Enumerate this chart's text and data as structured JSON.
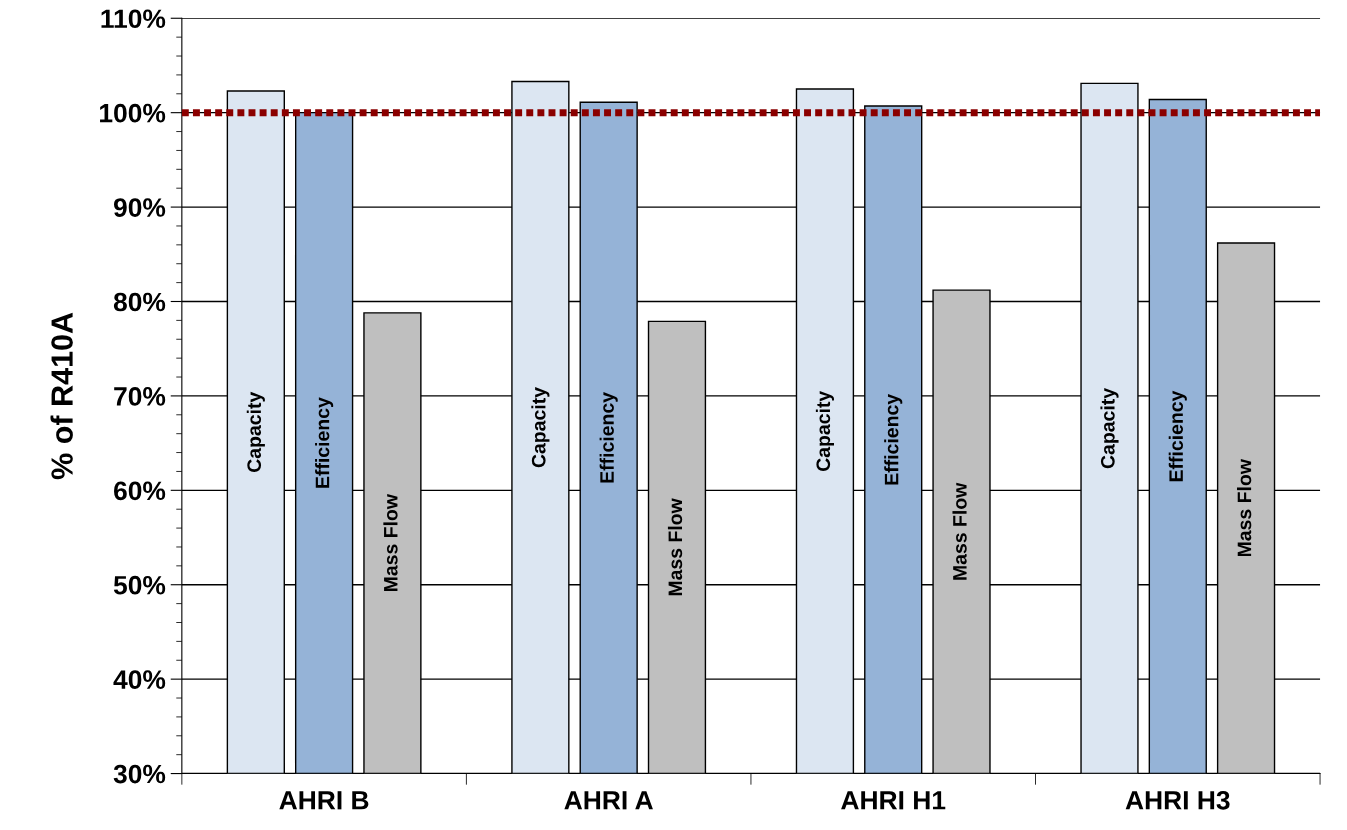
{
  "chart_data": {
    "type": "bar",
    "ylabel": "% of R410A",
    "categories": [
      "AHRI B",
      "AHRI A",
      "AHRI H1",
      "AHRI H3"
    ],
    "series": [
      {
        "name": "Capacity",
        "color": "#dce6f2",
        "values": [
          102.3,
          103.3,
          102.5,
          103.1
        ]
      },
      {
        "name": "Efficiency",
        "color": "#95b3d7",
        "values": [
          100.0,
          101.1,
          100.7,
          101.4
        ]
      },
      {
        "name": "Mass Flow",
        "color": "#bfbfbf",
        "values": [
          78.8,
          77.9,
          81.2,
          86.2
        ]
      }
    ],
    "ylim": [
      30,
      110
    ],
    "yticks": [
      {
        "value": 30,
        "label": "30%"
      },
      {
        "value": 40,
        "label": "40%"
      },
      {
        "value": 50,
        "label": "50%"
      },
      {
        "value": 60,
        "label": "60%"
      },
      {
        "value": 70,
        "label": "70%"
      },
      {
        "value": 80,
        "label": "80%"
      },
      {
        "value": 90,
        "label": "90%"
      },
      {
        "value": 100,
        "label": "100%"
      },
      {
        "value": 110,
        "label": "110%"
      }
    ],
    "grid": "y",
    "legend": false,
    "ref_lines": [
      {
        "axis": "y",
        "value": 100,
        "color": "#8b0000",
        "line_style": "dotted"
      }
    ]
  }
}
